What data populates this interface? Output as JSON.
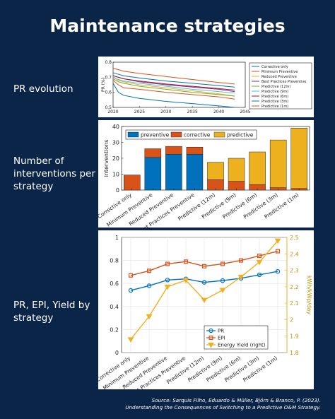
{
  "title": "Maintenance strategies",
  "side_labels": {
    "pr_evolution": "PR evolution",
    "interventions": "Number of interventions per strategy",
    "pr_epi_yield": "PR, EPI, Yield by strategy"
  },
  "source": {
    "line1": "Source: Sarquis Filho, Eduardo & Müller, Björn & Branco, P. (2023).",
    "line2": "Understanding the Consequences of Switching to a Predictive O&M Strategy."
  },
  "chart_data": [
    {
      "type": "line",
      "ylabel": "PR (%)",
      "xlim": [
        2020,
        2045
      ],
      "ylim": [
        0.5,
        0.8
      ],
      "x_ticks": [
        2020,
        2025,
        2030,
        2035,
        2040,
        2045
      ],
      "y_ticks": [
        0.5,
        0.6,
        0.7,
        0.8
      ],
      "legend_position": "right",
      "x": [
        2020,
        2021,
        2022,
        2025,
        2030,
        2035,
        2040,
        2043
      ],
      "series": [
        {
          "name": "Corrective only",
          "color": "#0072bd",
          "values": [
            0.66,
            0.6,
            0.58,
            0.56,
            0.54,
            0.525,
            0.51,
            0.5
          ]
        },
        {
          "name": "Minimum Preventive",
          "color": "#d95319",
          "values": [
            0.68,
            0.65,
            0.63,
            0.62,
            0.6,
            0.585,
            0.57,
            0.555
          ]
        },
        {
          "name": "Reduced Preventive",
          "color": "#edb120",
          "values": [
            0.7,
            0.68,
            0.67,
            0.65,
            0.63,
            0.61,
            0.59,
            0.575
          ]
        },
        {
          "name": "Best Practices Preventive",
          "color": "#7e2f8e",
          "values": [
            0.71,
            0.7,
            0.69,
            0.67,
            0.65,
            0.635,
            0.62,
            0.605
          ]
        },
        {
          "name": "Predictive (12m)",
          "color": "#77ac30",
          "values": [
            0.69,
            0.67,
            0.66,
            0.64,
            0.62,
            0.6,
            0.585,
            0.575
          ]
        },
        {
          "name": "Predictive (9m)",
          "color": "#4dbeee",
          "values": [
            0.7,
            0.685,
            0.675,
            0.66,
            0.64,
            0.62,
            0.605,
            0.595
          ]
        },
        {
          "name": "Predictive (6m)",
          "color": "#a2142f",
          "values": [
            0.71,
            0.7,
            0.69,
            0.675,
            0.655,
            0.64,
            0.625,
            0.615
          ]
        },
        {
          "name": "Predictive (3m)",
          "color": "#0072bd",
          "values": [
            0.73,
            0.72,
            0.71,
            0.695,
            0.675,
            0.66,
            0.645,
            0.635
          ]
        },
        {
          "name": "Predictive (1m)",
          "color": "#d95319",
          "values": [
            0.76,
            0.75,
            0.74,
            0.725,
            0.705,
            0.685,
            0.665,
            0.655
          ]
        }
      ]
    },
    {
      "type": "bar",
      "stacked": true,
      "ylabel": "interventions",
      "ylim": [
        0,
        40
      ],
      "y_ticks": [
        0,
        10,
        20,
        30,
        40
      ],
      "legend_position": "top",
      "categories": [
        "Corrective only",
        "Minimum Preventive",
        "Reduced Preventive",
        "Best Practices Preventive",
        "Predictive (12m)",
        "Predictive (9m)",
        "Predictive (6m)",
        "Predictive (3m)",
        "Predictive (1m)"
      ],
      "series": [
        {
          "name": "preventive",
          "color": "#0072bd",
          "values": [
            0,
            20.5,
            22.5,
            22.5,
            0,
            0,
            0,
            0,
            0
          ]
        },
        {
          "name": "corrective",
          "color": "#d95319",
          "values": [
            9.5,
            5.5,
            5,
            4.5,
            6.5,
            5.5,
            3.5,
            1.5,
            1
          ]
        },
        {
          "name": "predictive",
          "color": "#edb120",
          "values": [
            0,
            0,
            0,
            0,
            11,
            14.5,
            20.5,
            30,
            38
          ]
        }
      ]
    },
    {
      "type": "line",
      "ylim": [
        0,
        1
      ],
      "y_ticks": [
        0,
        0.2,
        0.4,
        0.6,
        0.8,
        1
      ],
      "y2label": "kWh/kWp/day",
      "y2lim": [
        1.8,
        2.5
      ],
      "y2_ticks": [
        1.8,
        1.9,
        2,
        2.1,
        2.2,
        2.3,
        2.4,
        2.5
      ],
      "legend_position": "bottom-center",
      "grid": true,
      "categories": [
        "Corrective only",
        "Minimum Preventive",
        "Reduced Preventive",
        "Best Practices Preventive",
        "Predictive (12m)",
        "Predictive (9m)",
        "Predictive (6m)",
        "Predictive (3m)",
        "Predictive (1m)"
      ],
      "series": [
        {
          "name": "PR",
          "color": "#0072bd",
          "marker": "circle",
          "axis": "left",
          "values": [
            0.54,
            0.58,
            0.63,
            0.64,
            0.61,
            0.625,
            0.645,
            0.675,
            0.705
          ]
        },
        {
          "name": "EPI",
          "color": "#d95319",
          "marker": "square",
          "axis": "left",
          "values": [
            0.67,
            0.71,
            0.77,
            0.79,
            0.75,
            0.77,
            0.8,
            0.84,
            0.88
          ]
        },
        {
          "name": "Energy Yield (right)",
          "color": "#edb120",
          "marker": "triangle-down",
          "axis": "right",
          "values": [
            1.88,
            2.02,
            2.2,
            2.24,
            2.12,
            2.18,
            2.26,
            2.35,
            2.48
          ]
        }
      ]
    }
  ]
}
